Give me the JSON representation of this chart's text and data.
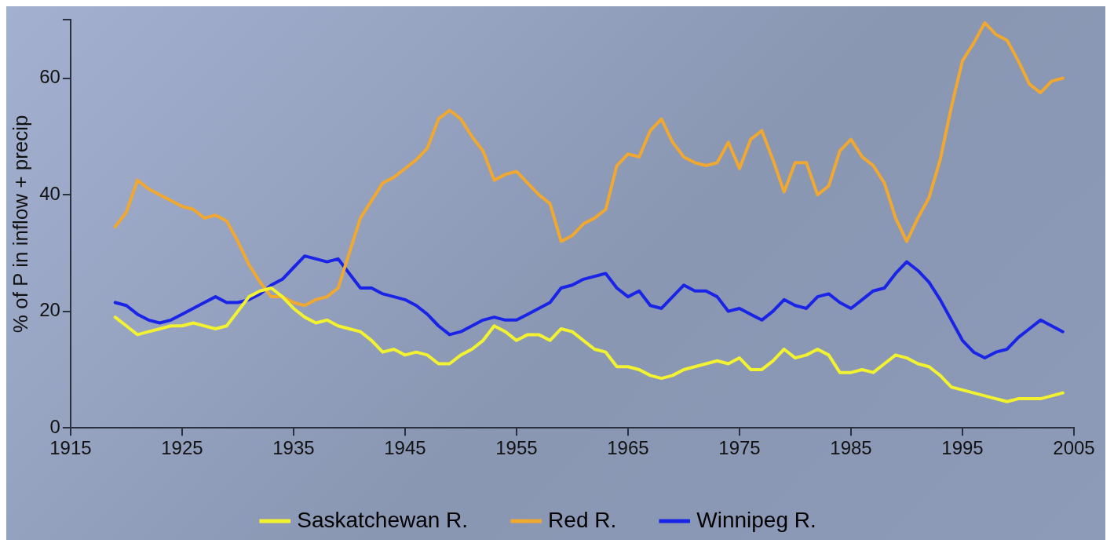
{
  "chart_data": {
    "type": "line",
    "ylabel": "% of P in inflow + precip",
    "x": [
      1919,
      1920,
      1921,
      1922,
      1923,
      1924,
      1925,
      1926,
      1927,
      1928,
      1929,
      1930,
      1931,
      1932,
      1933,
      1934,
      1935,
      1936,
      1937,
      1938,
      1939,
      1940,
      1941,
      1942,
      1943,
      1944,
      1945,
      1946,
      1947,
      1948,
      1949,
      1950,
      1951,
      1952,
      1953,
      1954,
      1955,
      1956,
      1957,
      1958,
      1959,
      1960,
      1961,
      1962,
      1963,
      1964,
      1965,
      1966,
      1967,
      1968,
      1969,
      1970,
      1971,
      1972,
      1973,
      1974,
      1975,
      1976,
      1977,
      1978,
      1979,
      1980,
      1981,
      1982,
      1983,
      1984,
      1985,
      1986,
      1987,
      1988,
      1989,
      1990,
      1991,
      1992,
      1993,
      1994,
      1995,
      1996,
      1997,
      1998,
      1999,
      2000,
      2001,
      2002,
      2003,
      2004
    ],
    "series": [
      {
        "name": "Saskatchewan R.",
        "color": "#f2f230",
        "values": [
          19,
          17.5,
          16,
          16.5,
          17,
          17.5,
          17.5,
          18,
          17.5,
          17,
          17.5,
          20,
          22.5,
          23.5,
          24,
          22.5,
          20.5,
          19,
          18,
          18.5,
          17.5,
          17,
          16.5,
          15,
          13,
          13.5,
          12.5,
          13,
          12.5,
          11,
          11,
          12.5,
          13.5,
          15,
          17.5,
          16.5,
          15,
          16,
          16,
          15,
          17,
          16.5,
          15,
          13.5,
          13,
          10.5,
          10.5,
          10,
          9,
          8.5,
          9,
          10,
          10.5,
          11,
          11.5,
          11,
          12,
          10,
          10,
          11.5,
          13.5,
          12,
          12.5,
          13.5,
          12.5,
          9.5,
          9.5,
          10,
          9.5,
          11,
          12.5,
          12,
          11,
          10.5,
          9,
          7,
          6.5,
          6,
          5.5,
          5,
          4.5,
          5,
          5,
          5,
          5.5,
          6
        ]
      },
      {
        "name": "Red R.",
        "color": "#f0a830",
        "values": [
          34.5,
          37,
          42.5,
          41,
          40,
          39,
          38,
          37.5,
          36,
          36.5,
          35.5,
          32,
          28,
          25,
          22.5,
          22.5,
          21.5,
          21,
          22,
          22.5,
          24,
          30,
          36,
          39,
          42,
          43,
          44.5,
          46,
          48,
          53,
          54.5,
          53,
          50,
          47.5,
          42.5,
          43.5,
          44,
          42,
          40,
          38.5,
          32,
          33,
          35,
          36,
          37.5,
          45,
          47,
          46.5,
          51,
          53,
          49,
          46.5,
          45.5,
          45,
          45.5,
          49,
          44.5,
          49.5,
          51,
          46,
          40.5,
          45.5,
          45.5,
          40,
          41.5,
          47.5,
          49.5,
          46.5,
          45,
          42,
          36,
          32,
          36,
          39.5,
          46,
          55,
          63,
          66,
          69.5,
          67.5,
          66.5,
          63,
          59,
          57.5,
          59.5,
          60
        ]
      },
      {
        "name": "Winnipeg R.",
        "color": "#1a24e6",
        "values": [
          21.5,
          21,
          19.5,
          18.5,
          18,
          18.5,
          19.5,
          20.5,
          21.5,
          22.5,
          21.5,
          21.5,
          22,
          23,
          24.5,
          25.5,
          27.5,
          29.5,
          29,
          28.5,
          29,
          26.5,
          24,
          24,
          23,
          22.5,
          22,
          21,
          19.5,
          17.5,
          16,
          16.5,
          17.5,
          18.5,
          19,
          18.5,
          18.5,
          19.5,
          20.5,
          21.5,
          24,
          24.5,
          25.5,
          26,
          26.5,
          24,
          22.5,
          23.5,
          21,
          20.5,
          22.5,
          24.5,
          23.5,
          23.5,
          22.5,
          20,
          20.5,
          19.5,
          18.5,
          20,
          22,
          21,
          20.5,
          22.5,
          23,
          21.5,
          20.5,
          22,
          23.5,
          24,
          26.5,
          28.5,
          27,
          25,
          22,
          18.5,
          15,
          13,
          12,
          13,
          13.5,
          15.5,
          17,
          18.5,
          17.5,
          16.5
        ]
      }
    ],
    "xlim": [
      1915,
      2005
    ],
    "xticks": [
      1915,
      1925,
      1935,
      1945,
      1955,
      1965,
      1975,
      1985,
      1995,
      2005
    ],
    "ylim": [
      0,
      70
    ],
    "yticks": [
      0,
      20,
      40,
      60,
      {
        "value": 70,
        "label": null
      }
    ],
    "grid": false,
    "legend": "bottom",
    "marker": "none",
    "line_style": "solid"
  }
}
